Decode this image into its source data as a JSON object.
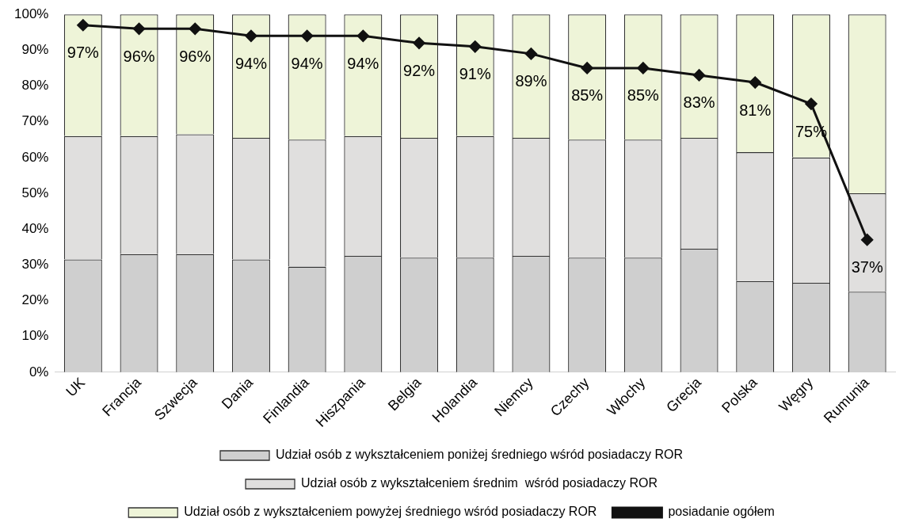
{
  "chart_data": {
    "type": "bar",
    "stacked": true,
    "categories": [
      "UK",
      "Francja",
      "Szwecja",
      "Dania",
      "Finlandia",
      "Hiszpania",
      "Belgia",
      "Holandia",
      "Niemcy",
      "Czechy",
      "Włochy",
      "Grecja",
      "Polska",
      "Węgry",
      "Rumunia"
    ],
    "series": [
      {
        "name": "Udział osób z wykształceniem poniżej średniego wśród posiadaczy ROR",
        "color": "#cfcfcf",
        "values": [
          31.5,
          33,
          33,
          31.5,
          29.5,
          32.5,
          32,
          32,
          32.5,
          32,
          32,
          34.5,
          25.5,
          25,
          22.5
        ]
      },
      {
        "name": "Udział osób z wykształceniem średnim  wśród posiadaczy ROR",
        "color": "#e0dfde",
        "values": [
          34.5,
          33,
          33.5,
          34,
          35.5,
          33.5,
          33.5,
          34,
          33,
          33,
          33,
          31,
          36,
          35,
          27.5
        ]
      },
      {
        "name": "Udział osób z wykształceniem powyżej średniego wśród posiadaczy ROR",
        "color": "#eef4d8",
        "values": [
          34,
          34,
          33.5,
          34.5,
          35,
          34,
          34.5,
          34,
          34.5,
          35,
          35,
          34.5,
          38.5,
          40,
          50
        ]
      },
      {
        "name": "posiadanie ogółem",
        "type": "line",
        "color": "#111111",
        "marker": "diamond",
        "values": [
          97,
          96,
          96,
          94,
          94,
          94,
          92,
          91,
          89,
          85,
          85,
          83,
          81,
          75,
          37
        ],
        "value_labels": [
          "97%",
          "96%",
          "96%",
          "94%",
          "94%",
          "94%",
          "92%",
          "91%",
          "89%",
          "85%",
          "85%",
          "83%",
          "81%",
          "75%",
          "37%"
        ]
      }
    ],
    "ylim": [
      0,
      100
    ],
    "yticks": [
      {
        "value": 0,
        "label": "0%"
      },
      {
        "value": 10,
        "label": "10%"
      },
      {
        "value": 20,
        "label": "20%"
      },
      {
        "value": 30,
        "label": "30%"
      },
      {
        "value": 40,
        "label": "40%"
      },
      {
        "value": 50,
        "label": "50%"
      },
      {
        "value": 60,
        "label": "60%"
      },
      {
        "value": 70,
        "label": "70%"
      },
      {
        "value": 80,
        "label": "80%"
      },
      {
        "value": 90,
        "label": "90%"
      },
      {
        "value": 100,
        "label": "100%"
      }
    ],
    "grid": false,
    "legend": "bottom"
  }
}
